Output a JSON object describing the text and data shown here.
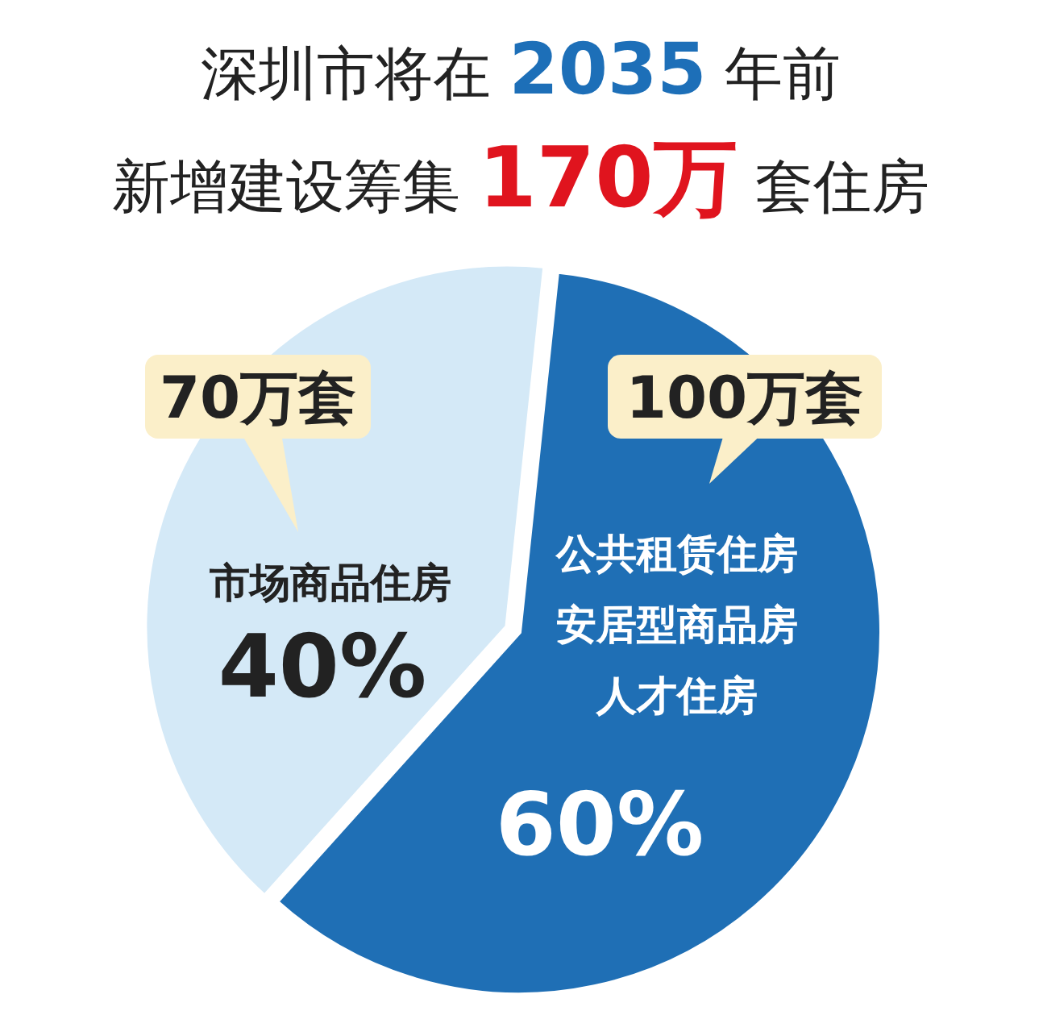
{
  "chart_data": {
    "type": "pie",
    "title": "深圳市将在 2035 年前",
    "subtitle": "新增建设筹集 170万 套住房",
    "categories": [
      "公共租赁住房安居型商品房人才住房",
      "市场商品住房"
    ],
    "values": [
      60,
      40
    ],
    "value_labels": [
      "60%",
      "40%"
    ],
    "colors": [
      "#1f6fb5",
      "#d4e9f7"
    ],
    "annotations": [
      "100万套",
      "70万套"
    ],
    "legend": false
  }
}
